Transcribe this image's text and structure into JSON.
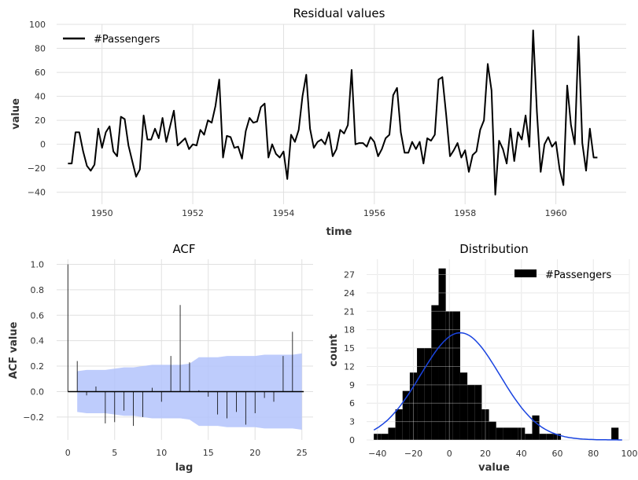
{
  "chart_data": [
    {
      "type": "line",
      "title": "Residual values",
      "xlabel": "time",
      "ylabel": "value",
      "xlim": [
        1949.0,
        1961.55
      ],
      "ylim": [
        -50,
        100
      ],
      "xticks": [
        1950,
        1952,
        1954,
        1956,
        1958,
        1960
      ],
      "yticks": [
        -40,
        -20,
        0,
        20,
        40,
        60,
        80,
        100
      ],
      "grid": true,
      "legend_position": "top-left",
      "color": "#000000",
      "series": [
        {
          "name": "#Passengers",
          "start": 1949.25,
          "step": 0.08333,
          "values": [
            -16,
            -16,
            10,
            10,
            -6,
            -18,
            -22,
            -17,
            13,
            -3,
            10,
            15,
            -6,
            -10,
            23,
            21,
            -1,
            -14,
            -27,
            -21,
            24,
            4,
            4,
            13,
            5,
            22,
            2,
            15,
            28,
            -1,
            2,
            5,
            -4,
            0,
            -1,
            12,
            8,
            20,
            18,
            32,
            54,
            -11,
            7,
            6,
            -3,
            -2,
            -12,
            11,
            22,
            18,
            19,
            31,
            34,
            -11,
            0,
            -8,
            -11,
            -6,
            -29,
            8,
            2,
            12,
            40,
            58,
            13,
            -3,
            2,
            4,
            0,
            10,
            -10,
            -4,
            12,
            9,
            16,
            62,
            0,
            1,
            1,
            -2,
            6,
            2,
            -10,
            -4,
            5,
            8,
            41,
            47,
            10,
            -7,
            -7,
            2,
            -4,
            2,
            -16,
            5,
            3,
            8,
            54,
            56,
            25,
            -10,
            -5,
            1,
            -11,
            -5,
            -23,
            -9,
            -6,
            12,
            20,
            67,
            45,
            -42,
            3,
            -4,
            -16,
            13,
            -14,
            10,
            4,
            24,
            -2,
            95,
            27,
            -23,
            0,
            6,
            -2,
            2,
            -21,
            -34,
            49,
            16,
            0,
            90,
            1,
            -22,
            13,
            -11,
            -11
          ]
        }
      ]
    },
    {
      "type": "bar",
      "title": "ACF",
      "xlabel": "lag",
      "ylabel": "ACF value",
      "xlim": [
        -1.2,
        26.2
      ],
      "ylim": [
        -0.38,
        1.04
      ],
      "xticks": [
        0,
        5,
        10,
        15,
        20,
        25
      ],
      "yticks": [
        -0.2,
        0.0,
        0.2,
        0.4,
        0.6,
        0.8,
        1.0
      ],
      "grid": true,
      "lags": [
        0,
        1,
        2,
        3,
        4,
        5,
        6,
        7,
        8,
        9,
        10,
        11,
        12,
        13,
        14,
        15,
        16,
        17,
        18,
        19,
        20,
        21,
        22,
        23,
        24
      ],
      "values": [
        1.0,
        0.24,
        -0.03,
        0.04,
        -0.25,
        -0.24,
        -0.15,
        -0.27,
        -0.2,
        0.03,
        -0.08,
        0.28,
        0.68,
        0.23,
        0.01,
        -0.04,
        -0.18,
        -0.21,
        -0.16,
        -0.26,
        -0.17,
        -0.05,
        -0.08,
        0.28,
        0.47
      ],
      "confidence_band_upper": [
        0.16,
        0.17,
        0.17,
        0.17,
        0.18,
        0.19,
        0.19,
        0.2,
        0.21,
        0.21,
        0.21,
        0.21,
        0.22,
        0.27,
        0.27,
        0.27,
        0.28,
        0.28,
        0.28,
        0.28,
        0.29,
        0.29,
        0.29,
        0.29,
        0.3
      ],
      "bar_color": "#000000",
      "band_color": "#b3c3fb"
    },
    {
      "type": "bar",
      "title": "Distribution",
      "xlabel": "value",
      "ylabel": "count",
      "xlim": [
        -46,
        100
      ],
      "ylim": [
        0,
        29.5
      ],
      "xticks": [
        -40,
        -20,
        0,
        20,
        40,
        60,
        80,
        100
      ],
      "yticks": [
        0,
        3,
        6,
        9,
        12,
        15,
        18,
        21,
        24,
        27
      ],
      "grid": true,
      "legend_position": "top-right",
      "bin_width": 4,
      "bin_starts": [
        -42,
        -38,
        -34,
        -30,
        -26,
        -22,
        -18,
        -14,
        -10,
        -6,
        -2,
        2,
        6,
        10,
        14,
        18,
        22,
        26,
        30,
        34,
        38,
        42,
        46,
        50,
        54,
        58,
        62,
        66,
        70,
        74,
        78,
        82,
        86,
        90
      ],
      "counts": [
        1,
        1,
        2,
        5,
        8,
        11,
        15,
        15,
        22,
        28,
        21,
        21,
        11,
        9,
        9,
        5,
        3,
        2,
        2,
        2,
        2,
        1,
        4,
        1,
        1,
        1,
        0,
        0,
        0,
        0,
        0,
        0,
        0,
        2
      ],
      "series": [
        {
          "name": "#Passengers"
        }
      ],
      "bar_color": "#000000",
      "fit_curve": {
        "type": "normal",
        "mean": 6.0,
        "std": 22.0,
        "peak": 17.5,
        "color": "#1a44e0"
      }
    }
  ]
}
